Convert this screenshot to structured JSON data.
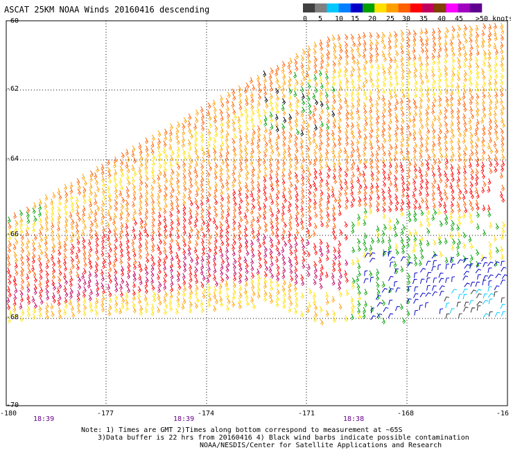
{
  "title": "ASCAT 25KM NOAA Winds 20160416 descending",
  "colorbar": {
    "labels": [
      "0",
      "5",
      "10",
      "15",
      "20",
      "25",
      "30",
      "35",
      "40",
      "45",
      ">50 knots"
    ],
    "colors": [
      "#404040",
      "#808080",
      "#00c8ff",
      "#0080ff",
      "#0000c8",
      "#00a000",
      "#ffe000",
      "#ffa000",
      "#ff6000",
      "#ff0000",
      "#c00060",
      "#804000",
      "#ff00ff",
      "#a000c0",
      "#600090"
    ]
  },
  "axes": {
    "lat_labels": [
      "-60",
      "-62",
      "-64",
      "-66",
      "-68",
      "-70"
    ],
    "lon_labels": [
      "-180",
      "-177",
      "-174",
      "-171",
      "-168",
      "-16"
    ]
  },
  "times": [
    "18:39",
    "18:39",
    "18:38"
  ],
  "notes": {
    "line1": "Note: 1) Times are GMT 2)Times along bottom correspond to measurement at ~65S",
    "line2": "3)Data buffer is 22 hrs from 20160416 4) Black wind barbs indicate possible contamination",
    "line3": "NOAA/NESDIS/Center for Satellite Applications and Research"
  }
}
